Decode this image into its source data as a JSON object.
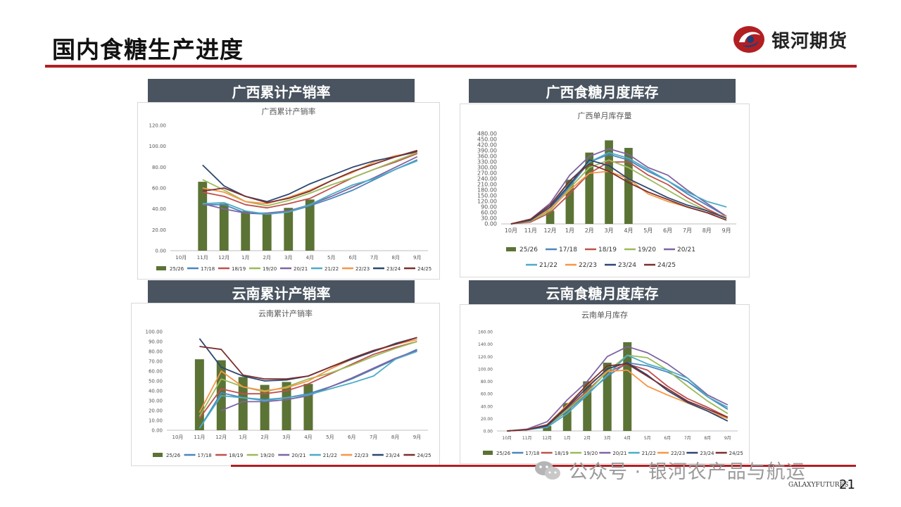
{
  "page": {
    "title": "国内食糖生产进度",
    "page_number": "21",
    "brand_name": "银河期货",
    "watermark": "公众号 · 银河农产品与航运",
    "footer_brand": "GALAXYFUTURES",
    "accent_color": "#b11f23",
    "header_color": "#4a5460"
  },
  "panels": [
    {
      "header": "广西累计产销率"
    },
    {
      "header": "广西食糖月度库存"
    },
    {
      "header": "云南累计产销率"
    },
    {
      "header": "云南食糖月度库存"
    }
  ],
  "chart_data": [
    {
      "type": "bar+line",
      "title": "广西累计产销率",
      "categories": [
        "10月",
        "11月",
        "12月",
        "1月",
        "2月",
        "3月",
        "4月",
        "5月",
        "6月",
        "7月",
        "8月",
        "9月"
      ],
      "y_ticks": [
        "0.00",
        "20.00",
        "40.00",
        "60.00",
        "80.00",
        "100.00",
        "120.00"
      ],
      "ylim": [
        0,
        120
      ],
      "legend_position": "bottom",
      "series": [
        {
          "name": "25/26",
          "kind": "bar",
          "color": "#5b7335",
          "values": [
            null,
            66,
            45,
            38,
            35,
            41,
            49,
            null,
            null,
            null,
            null,
            null
          ]
        },
        {
          "name": "17/18",
          "kind": "line",
          "color": "#4a86bd",
          "values": [
            null,
            44,
            44,
            36,
            35,
            37,
            43,
            50,
            58,
            68,
            78,
            87
          ]
        },
        {
          "name": "18/19",
          "kind": "line",
          "color": "#c0504d",
          "values": [
            null,
            56,
            52,
            44,
            41,
            45,
            50,
            60,
            70,
            78,
            85,
            93
          ]
        },
        {
          "name": "19/20",
          "kind": "line",
          "color": "#9bbb59",
          "values": [
            null,
            68,
            58,
            47,
            43,
            48,
            55,
            63,
            70,
            78,
            86,
            94
          ]
        },
        {
          "name": "20/21",
          "kind": "line",
          "color": "#8064a2",
          "values": [
            null,
            45,
            40,
            36,
            36,
            38,
            44,
            52,
            61,
            70,
            80,
            90
          ]
        },
        {
          "name": "21/22",
          "kind": "line",
          "color": "#4bacc6",
          "values": [
            null,
            45,
            46,
            38,
            35,
            37,
            44,
            54,
            63,
            69,
            78,
            86
          ]
        },
        {
          "name": "22/23",
          "kind": "line",
          "color": "#f79646",
          "values": [
            null,
            60,
            56,
            47,
            45,
            51,
            58,
            67,
            75,
            85,
            91,
            94
          ]
        },
        {
          "name": "23/24",
          "kind": "line",
          "color": "#2c4770",
          "values": [
            null,
            82,
            62,
            52,
            47,
            54,
            64,
            72,
            80,
            86,
            90,
            95
          ]
        },
        {
          "name": "24/25",
          "kind": "line",
          "color": "#7b2f2f",
          "values": [
            null,
            57,
            60,
            52,
            46,
            50,
            57,
            67,
            76,
            83,
            90,
            96
          ]
        }
      ]
    },
    {
      "type": "bar+line",
      "title": "广西单月库存量",
      "categories": [
        "10月",
        "11月",
        "12月",
        "1月",
        "2月",
        "3月",
        "4月",
        "5月",
        "6月",
        "7月",
        "8月",
        "9月"
      ],
      "y_ticks": [
        "0.00",
        "30.00",
        "60.00",
        "90.00",
        "120.00",
        "150.00",
        "180.00",
        "210.00",
        "240.00",
        "270.00",
        "300.00",
        "330.00",
        "360.00",
        "390.00",
        "420.00",
        "450.00",
        "480.00"
      ],
      "ylim": [
        0,
        480
      ],
      "legend_position": "bottom",
      "series": [
        {
          "name": "25/26",
          "kind": "bar",
          "color": "#5b7335",
          "values": [
            null,
            null,
            70,
            235,
            380,
            445,
            405,
            null,
            null,
            null,
            null,
            null
          ]
        },
        {
          "name": "17/18",
          "kind": "line",
          "color": "#4a86bd",
          "values": [
            0,
            20,
            80,
            200,
            330,
            370,
            340,
            280,
            230,
            160,
            100,
            40
          ]
        },
        {
          "name": "18/19",
          "kind": "line",
          "color": "#c0504d",
          "values": [
            0,
            10,
            60,
            160,
            270,
            330,
            330,
            260,
            210,
            140,
            80,
            30
          ]
        },
        {
          "name": "19/20",
          "kind": "line",
          "color": "#9bbb59",
          "values": [
            0,
            15,
            70,
            190,
            300,
            340,
            300,
            240,
            180,
            120,
            70,
            30
          ]
        },
        {
          "name": "20/21",
          "kind": "line",
          "color": "#8064a2",
          "values": [
            0,
            25,
            110,
            260,
            360,
            400,
            370,
            300,
            260,
            180,
            110,
            40
          ]
        },
        {
          "name": "21/22",
          "kind": "line",
          "color": "#4bacc6",
          "values": [
            0,
            20,
            90,
            230,
            330,
            380,
            350,
            290,
            230,
            170,
            120,
            90
          ]
        },
        {
          "name": "22/23",
          "kind": "line",
          "color": "#f79646",
          "values": [
            0,
            20,
            80,
            180,
            270,
            280,
            240,
            160,
            120,
            90,
            60,
            40
          ]
        },
        {
          "name": "23/24",
          "kind": "line",
          "color": "#2c4770",
          "values": [
            0,
            20,
            90,
            210,
            340,
            310,
            240,
            190,
            140,
            100,
            70,
            30
          ]
        },
        {
          "name": "24/25",
          "kind": "line",
          "color": "#7b2f2f",
          "values": [
            0,
            25,
            100,
            230,
            320,
            280,
            220,
            170,
            130,
            90,
            60,
            20
          ]
        }
      ]
    },
    {
      "type": "bar+line",
      "title": "云南累计产销率",
      "categories": [
        "10月",
        "11月",
        "12月",
        "1月",
        "2月",
        "3月",
        "4月",
        "5月",
        "6月",
        "7月",
        "8月",
        "9月"
      ],
      "y_ticks": [
        "0.00",
        "10.00",
        "20.00",
        "30.00",
        "40.00",
        "50.00",
        "60.00",
        "70.00",
        "80.00",
        "90.00",
        "100.00"
      ],
      "ylim": [
        0,
        100
      ],
      "legend_position": "bottom",
      "series": [
        {
          "name": "25/26",
          "kind": "bar",
          "color": "#5b7335",
          "values": [
            null,
            72,
            71,
            54,
            46,
            49,
            47,
            null,
            null,
            null,
            null,
            null
          ]
        },
        {
          "name": "17/18",
          "kind": "line",
          "color": "#4a86bd",
          "values": [
            null,
            2,
            38,
            33,
            31,
            33,
            37,
            44,
            52,
            62,
            72,
            82
          ]
        },
        {
          "name": "18/19",
          "kind": "line",
          "color": "#c0504d",
          "values": [
            null,
            12,
            42,
            37,
            37,
            40,
            47,
            57,
            67,
            77,
            84,
            90
          ]
        },
        {
          "name": "19/20",
          "kind": "line",
          "color": "#9bbb59",
          "values": [
            null,
            14,
            52,
            44,
            39,
            44,
            52,
            58,
            66,
            75,
            83,
            90
          ]
        },
        {
          "name": "20/21",
          "kind": "line",
          "color": "#8064a2",
          "values": [
            null,
            null,
            20,
            29,
            29,
            31,
            35,
            44,
            53,
            63,
            73,
            81
          ]
        },
        {
          "name": "21/22",
          "kind": "line",
          "color": "#4bacc6",
          "values": [
            null,
            2,
            35,
            33,
            30,
            33,
            36,
            42,
            48,
            55,
            72,
            80
          ]
        },
        {
          "name": "22/23",
          "kind": "line",
          "color": "#f79646",
          "values": [
            null,
            18,
            60,
            44,
            40,
            43,
            50,
            62,
            72,
            80,
            87,
            92
          ]
        },
        {
          "name": "23/24",
          "kind": "line",
          "color": "#2c4770",
          "values": [
            null,
            93,
            64,
            55,
            50,
            51,
            55,
            64,
            72,
            80,
            88,
            94
          ]
        },
        {
          "name": "24/25",
          "kind": "line",
          "color": "#7b2f2f",
          "values": [
            null,
            85,
            82,
            56,
            52,
            52,
            55,
            64,
            73,
            81,
            87,
            94
          ]
        }
      ]
    },
    {
      "type": "bar+line",
      "title": "云南单月库存",
      "categories": [
        "10月",
        "11月",
        "12月",
        "1月",
        "2月",
        "3月",
        "4月",
        "5月",
        "6月",
        "7月",
        "8月",
        "9月"
      ],
      "y_ticks": [
        "0.00",
        "20.00",
        "40.00",
        "60.00",
        "80.00",
        "100.00",
        "120.00",
        "140.00",
        "160.00"
      ],
      "ylim": [
        0,
        160
      ],
      "legend_position": "bottom",
      "series": [
        {
          "name": "25/26",
          "kind": "bar",
          "color": "#5b7335",
          "values": [
            null,
            null,
            8,
            45,
            80,
            110,
            143,
            null,
            null,
            null,
            null,
            null
          ]
        },
        {
          "name": "17/18",
          "kind": "line",
          "color": "#4a86bd",
          "values": [
            0,
            2,
            8,
            32,
            60,
            88,
            110,
            105,
            95,
            80,
            55,
            35
          ]
        },
        {
          "name": "18/19",
          "kind": "line",
          "color": "#c0504d",
          "values": [
            0,
            2,
            8,
            36,
            65,
            95,
            108,
            98,
            72,
            52,
            38,
            22
          ]
        },
        {
          "name": "19/20",
          "kind": "line",
          "color": "#9bbb59",
          "values": [
            0,
            2,
            8,
            34,
            62,
            96,
            122,
            118,
            98,
            72,
            48,
            28
          ]
        },
        {
          "name": "20/21",
          "kind": "line",
          "color": "#8064a2",
          "values": [
            0,
            3,
            15,
            50,
            80,
            120,
            136,
            126,
            108,
            85,
            58,
            42
          ]
        },
        {
          "name": "21/22",
          "kind": "line",
          "color": "#4bacc6",
          "values": [
            0,
            2,
            6,
            28,
            58,
            90,
            122,
            108,
            98,
            85,
            55,
            38
          ]
        },
        {
          "name": "22/23",
          "kind": "line",
          "color": "#f79646",
          "values": [
            0,
            2,
            10,
            42,
            74,
            96,
            98,
            72,
            58,
            45,
            32,
            20
          ]
        },
        {
          "name": "23/24",
          "kind": "line",
          "color": "#2c4770",
          "values": [
            0,
            2,
            8,
            38,
            70,
            100,
            110,
            90,
            65,
            46,
            32,
            16
          ]
        },
        {
          "name": "24/25",
          "kind": "line",
          "color": "#7b2f2f",
          "values": [
            0,
            2,
            10,
            40,
            75,
            105,
            108,
            88,
            68,
            48,
            35,
            22
          ]
        }
      ]
    }
  ]
}
